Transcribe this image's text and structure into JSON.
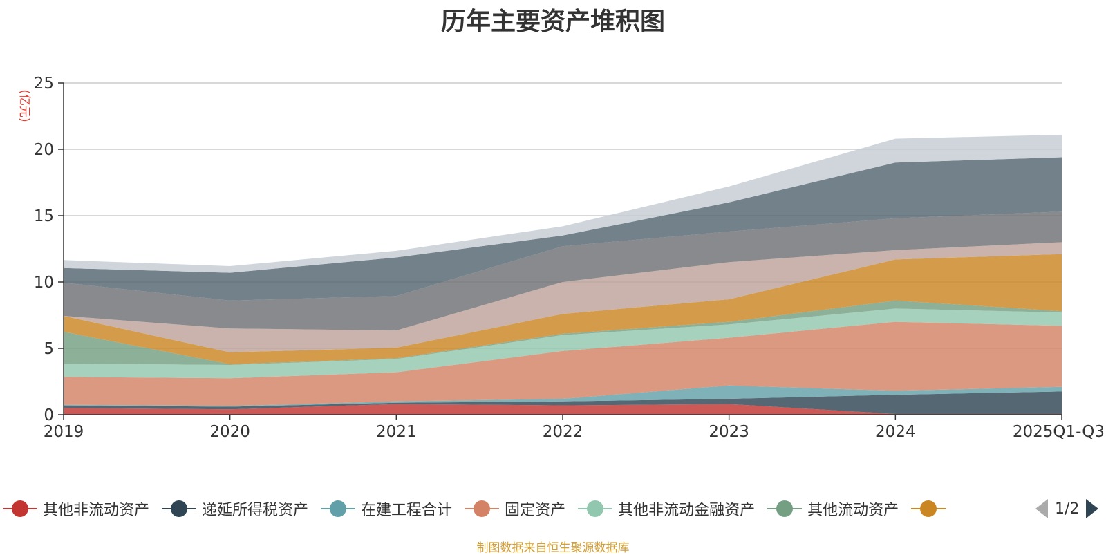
{
  "chart_data": {
    "type": "area",
    "stacked": true,
    "title": "历年主要资产堆积图",
    "ylabel": "(亿元)",
    "xlabel": "",
    "ylim": [
      0,
      25
    ],
    "yticks": [
      "0",
      "5",
      "10",
      "15",
      "20",
      "25"
    ],
    "categories": [
      "2019",
      "2020",
      "2021",
      "2022",
      "2023",
      "2024",
      "2025Q1-Q3"
    ],
    "grid": true,
    "series": [
      {
        "name": "其他非流动资产",
        "color": "#c23531",
        "values": [
          0.5,
          0.4,
          0.8,
          0.7,
          0.8,
          0.05,
          0.05
        ]
      },
      {
        "name": "递延所得税资产",
        "color": "#2f4554",
        "values": [
          0.2,
          0.2,
          0.1,
          0.3,
          0.4,
          1.45,
          1.7
        ]
      },
      {
        "name": "在建工程合计",
        "color": "#61a0a8",
        "values": [
          0.05,
          0.05,
          0.1,
          0.2,
          1.0,
          0.3,
          0.35
        ]
      },
      {
        "name": "固定资产",
        "color": "#d48265",
        "values": [
          2.1,
          2.1,
          2.2,
          3.6,
          3.6,
          5.2,
          4.6
        ]
      },
      {
        "name": "其他非流动金融资产",
        "color": "#91c7ae",
        "values": [
          1.0,
          1.0,
          1.0,
          1.2,
          1.0,
          1.0,
          1.0
        ]
      },
      {
        "name": "其他流动资产",
        "color": "#749f83",
        "values": [
          2.4,
          0.05,
          0.05,
          0.1,
          0.2,
          0.6,
          0.1
        ]
      },
      {
        "name": "",
        "color": "#ca8622",
        "values": [
          1.2,
          0.9,
          0.8,
          1.5,
          1.7,
          3.1,
          4.3
        ]
      },
      {
        "name": "",
        "color": "#bda29a",
        "values": [
          0.0,
          1.8,
          1.3,
          2.4,
          2.8,
          0.7,
          0.9
        ]
      },
      {
        "name": "",
        "color": "#6e7074",
        "values": [
          2.5,
          2.1,
          2.6,
          2.7,
          2.3,
          2.4,
          2.3
        ]
      },
      {
        "name": "",
        "color": "#546570",
        "values": [
          1.1,
          2.1,
          2.9,
          0.8,
          2.2,
          4.2,
          4.1
        ]
      },
      {
        "name": "",
        "color": "#c4ccd3",
        "values": [
          0.6,
          0.5,
          0.5,
          0.7,
          1.2,
          1.8,
          1.7
        ]
      }
    ]
  },
  "legend_pager": {
    "page_text": "1/2"
  },
  "source_note": "制图数据来自恒生聚源数据库"
}
